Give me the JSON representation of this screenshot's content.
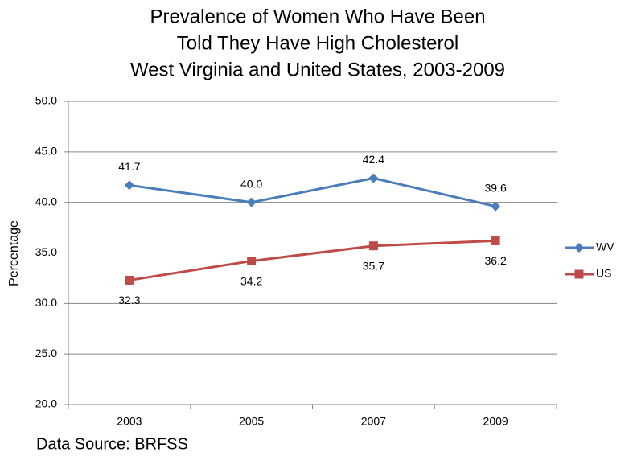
{
  "chart_data": {
    "type": "line",
    "title": [
      "Prevalence of Women Who Have Been",
      "Told They Have High Cholesterol",
      "West Virginia and United States, 2003-2009"
    ],
    "y_label": "Percentage",
    "source": "Data Source: BRFSS",
    "categories": [
      "2003",
      "2005",
      "2007",
      "2009"
    ],
    "series": [
      {
        "name": "WV",
        "color": "#4a7ebb",
        "marker": "diamond",
        "values": [
          41.7,
          40.0,
          42.4,
          39.6
        ],
        "value_labels": [
          "41.7",
          "40.0",
          "42.4",
          "39.6"
        ]
      },
      {
        "name": "US",
        "color": "#be4b48",
        "marker": "square",
        "values": [
          32.3,
          34.2,
          35.7,
          36.2
        ],
        "value_labels": [
          "32.3",
          "34.2",
          "35.7",
          "36.2"
        ]
      }
    ],
    "ylim": [
      20,
      50
    ],
    "yticks": [
      {
        "value": 20,
        "label": "20.0"
      },
      {
        "value": 25,
        "label": "25.0"
      },
      {
        "value": 30,
        "label": "30.0"
      },
      {
        "value": 35,
        "label": "35.0"
      },
      {
        "value": 40,
        "label": "40.0"
      },
      {
        "value": 45,
        "label": "45.0"
      },
      {
        "value": 50,
        "label": "50.0"
      }
    ],
    "grid": true
  }
}
